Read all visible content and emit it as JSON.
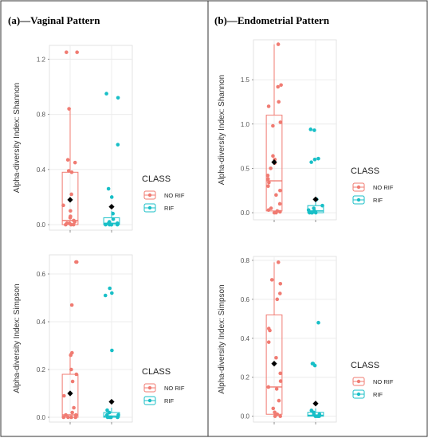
{
  "panels": [
    {
      "id": "a",
      "title": "(a)—Vaginal Pattern"
    },
    {
      "id": "b",
      "title": "(b)—Endometrial Pattern"
    }
  ],
  "legend": {
    "title": "CLASS",
    "items": [
      "NO RIF",
      "RIF"
    ]
  },
  "colors": {
    "no_rif": "#f07b72",
    "rif": "#18bfc7",
    "mean": "#000000",
    "grid": "#ececec",
    "border": "#333333"
  },
  "chart_data": [
    {
      "type": "box",
      "panel": "a",
      "ylabel": "Alpha-diversity Index: Shannon",
      "categories": [
        "NO RIF",
        "RIF"
      ],
      "ylim": [
        -0.04,
        1.3
      ],
      "yticks": [
        0.0,
        0.4,
        0.8,
        1.2
      ],
      "ytick_labels": [
        "0.0",
        "0.4",
        "0.8",
        "1.2"
      ],
      "series": [
        {
          "name": "NO RIF",
          "box": {
            "min": 0.0,
            "q1": 0.0,
            "median": 0.03,
            "q3": 0.38,
            "max": 0.84
          },
          "mean": 0.18,
          "points": [
            0.0,
            0.0,
            0.0,
            0.01,
            0.01,
            0.02,
            0.03,
            0.05,
            0.06,
            0.1,
            0.14,
            0.22,
            0.38,
            0.39,
            0.45,
            0.47,
            0.84,
            1.25,
            1.25
          ]
        },
        {
          "name": "RIF",
          "box": {
            "min": 0.0,
            "q1": 0.0,
            "median": 0.01,
            "q3": 0.05,
            "max": 0.1
          },
          "mean": 0.13,
          "points": [
            0.0,
            0.0,
            0.0,
            0.0,
            0.0,
            0.01,
            0.01,
            0.02,
            0.04,
            0.08,
            0.2,
            0.26,
            0.58,
            0.92,
            0.95
          ]
        }
      ]
    },
    {
      "type": "box",
      "panel": "a",
      "ylabel": "Alpha-diversity Index: Simpson",
      "categories": [
        "NO RIF",
        "RIF"
      ],
      "ylim": [
        -0.02,
        0.68
      ],
      "yticks": [
        0.0,
        0.2,
        0.4,
        0.6
      ],
      "ytick_labels": [
        "0.0",
        "0.2",
        "0.4",
        "0.6"
      ],
      "series": [
        {
          "name": "NO RIF",
          "box": {
            "min": 0.0,
            "q1": 0.0,
            "median": 0.01,
            "q3": 0.18,
            "max": 0.27
          },
          "mean": 0.1,
          "points": [
            0.0,
            0.0,
            0.0,
            0.0,
            0.01,
            0.01,
            0.02,
            0.04,
            0.09,
            0.15,
            0.18,
            0.2,
            0.26,
            0.27,
            0.47,
            0.65,
            0.65
          ]
        },
        {
          "name": "RIF",
          "box": {
            "min": 0.0,
            "q1": 0.0,
            "median": 0.005,
            "q3": 0.02,
            "max": 0.04
          },
          "mean": 0.065,
          "points": [
            0.0,
            0.0,
            0.0,
            0.0,
            0.01,
            0.01,
            0.02,
            0.03,
            0.28,
            0.51,
            0.52,
            0.54
          ]
        }
      ]
    },
    {
      "type": "box",
      "panel": "b",
      "ylabel": "Alpha-diversity Index: Shannon",
      "categories": [
        "NO RIF",
        "RIF"
      ],
      "ylim": [
        -0.08,
        1.95
      ],
      "yticks": [
        0.0,
        0.5,
        1.0,
        1.5
      ],
      "ytick_labels": [
        "0.0",
        "0.5",
        "1.0",
        "1.5"
      ],
      "series": [
        {
          "name": "NO RIF",
          "box": {
            "min": 0.0,
            "q1": 0.02,
            "median": 0.36,
            "q3": 1.1,
            "max": 1.9
          },
          "mean": 0.57,
          "points": [
            0.0,
            0.0,
            0.01,
            0.02,
            0.03,
            0.05,
            0.1,
            0.2,
            0.25,
            0.3,
            0.34,
            0.38,
            0.42,
            0.5,
            0.56,
            0.6,
            0.64,
            0.98,
            1.02,
            1.2,
            1.25,
            1.42,
            1.44,
            1.9
          ]
        },
        {
          "name": "RIF",
          "box": {
            "min": 0.0,
            "q1": 0.0,
            "median": 0.02,
            "q3": 0.08,
            "max": 0.15
          },
          "mean": 0.15,
          "points": [
            0.0,
            0.0,
            0.0,
            0.0,
            0.01,
            0.02,
            0.03,
            0.05,
            0.08,
            0.15,
            0.57,
            0.6,
            0.61,
            0.93,
            0.94
          ]
        }
      ]
    },
    {
      "type": "box",
      "panel": "b",
      "ylabel": "Alpha-diversity Index: Simpson",
      "categories": [
        "NO RIF",
        "RIF"
      ],
      "ylim": [
        -0.03,
        0.82
      ],
      "yticks": [
        0.0,
        0.2,
        0.4,
        0.6,
        0.8
      ],
      "ytick_labels": [
        "0.0",
        "0.2",
        "0.4",
        "0.6",
        "0.8"
      ],
      "series": [
        {
          "name": "NO RIF",
          "box": {
            "min": 0.0,
            "q1": 0.01,
            "median": 0.15,
            "q3": 0.52,
            "max": 0.79
          },
          "mean": 0.27,
          "points": [
            0.0,
            0.0,
            0.01,
            0.02,
            0.04,
            0.08,
            0.14,
            0.15,
            0.18,
            0.22,
            0.3,
            0.38,
            0.44,
            0.45,
            0.6,
            0.63,
            0.68,
            0.7,
            0.79
          ]
        },
        {
          "name": "RIF",
          "box": {
            "min": 0.0,
            "q1": 0.0,
            "median": 0.005,
            "q3": 0.02,
            "max": 0.04
          },
          "mean": 0.065,
          "points": [
            0.0,
            0.0,
            0.0,
            0.0,
            0.01,
            0.01,
            0.02,
            0.03,
            0.26,
            0.27,
            0.27,
            0.48
          ]
        }
      ]
    }
  ]
}
